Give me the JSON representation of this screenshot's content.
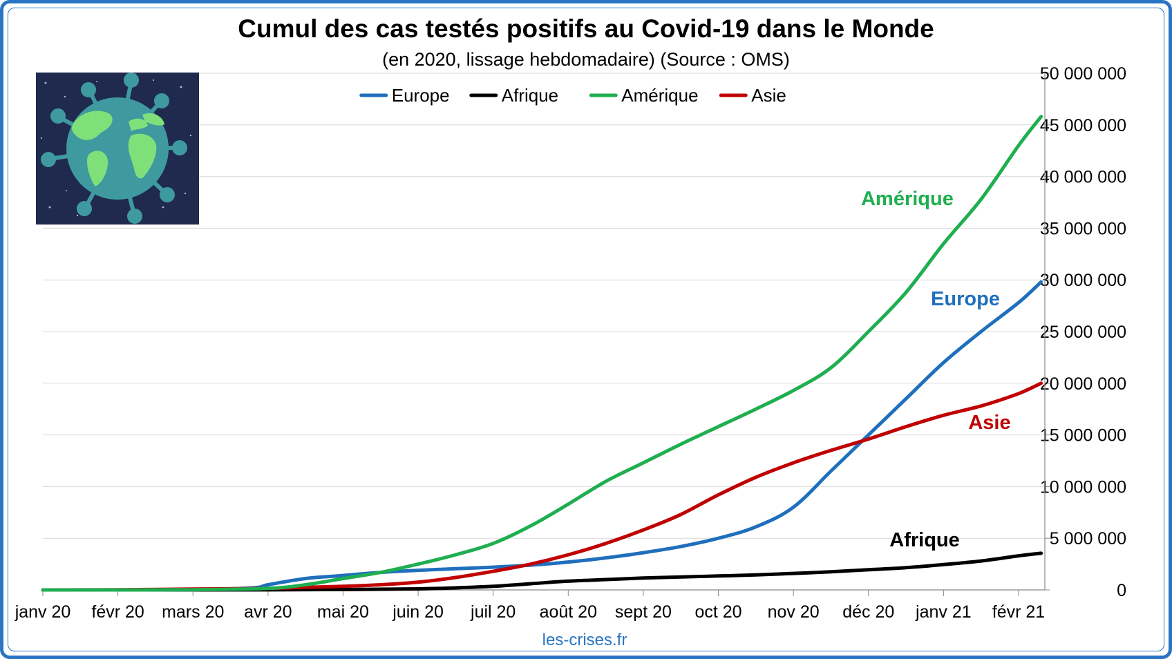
{
  "chart_data": {
    "type": "line",
    "title": "Cumul des cas testés positifs au Covid-19 dans le Monde",
    "subtitle": "(en 2020, lissage hebdomadaire) (Source : OMS)",
    "source_note": "les-crises.fr",
    "x_ticks": [
      "janv 20",
      "févr 20",
      "mars 20",
      "avr 20",
      "mai 20",
      "juin 20",
      "juil 20",
      "août 20",
      "sept 20",
      "oct 20",
      "nov 20",
      "déc 20",
      "janv 21",
      "févr 21"
    ],
    "y_ticks": [
      "0",
      "5 000 000",
      "10 000 000",
      "15 000 000",
      "20 000 000",
      "25 000 000",
      "30 000 000",
      "35 000 000",
      "40 000 000",
      "45 000 000",
      "50 000 000"
    ],
    "ylim": [
      0,
      50000000
    ],
    "y_axis_side": "right",
    "grid": true,
    "legend_position": "top-center",
    "x_unit": "months since janv 20",
    "series": [
      {
        "name": "Europe",
        "color": "#1f6fbd",
        "points": [
          [
            0,
            0
          ],
          [
            1,
            0
          ],
          [
            2,
            30000
          ],
          [
            2.8,
            200000
          ],
          [
            3,
            500000
          ],
          [
            3.5,
            1100000
          ],
          [
            4,
            1400000
          ],
          [
            4.5,
            1700000
          ],
          [
            5,
            1900000
          ],
          [
            5.5,
            2050000
          ],
          [
            6,
            2200000
          ],
          [
            6.5,
            2400000
          ],
          [
            7,
            2700000
          ],
          [
            7.5,
            3100000
          ],
          [
            8,
            3600000
          ],
          [
            8.5,
            4200000
          ],
          [
            9,
            5000000
          ],
          [
            9.5,
            6100000
          ],
          [
            10,
            8000000
          ],
          [
            10.5,
            11500000
          ],
          [
            11,
            15000000
          ],
          [
            11.5,
            18500000
          ],
          [
            12,
            22000000
          ],
          [
            12.5,
            25000000
          ],
          [
            13,
            27800000
          ],
          [
            13.3,
            29800000
          ]
        ]
      },
      {
        "name": "Afrique",
        "color": "#000000",
        "points": [
          [
            0,
            0
          ],
          [
            1,
            0
          ],
          [
            2,
            0
          ],
          [
            3,
            10000
          ],
          [
            4,
            40000
          ],
          [
            5,
            100000
          ],
          [
            5.5,
            200000
          ],
          [
            6,
            350000
          ],
          [
            6.5,
            600000
          ],
          [
            7,
            850000
          ],
          [
            7.5,
            1000000
          ],
          [
            8,
            1150000
          ],
          [
            8.5,
            1250000
          ],
          [
            9,
            1350000
          ],
          [
            9.5,
            1450000
          ],
          [
            10,
            1600000
          ],
          [
            10.5,
            1750000
          ],
          [
            11,
            1950000
          ],
          [
            11.5,
            2150000
          ],
          [
            12,
            2450000
          ],
          [
            12.5,
            2800000
          ],
          [
            13,
            3300000
          ],
          [
            13.3,
            3550000
          ]
        ]
      },
      {
        "name": "Amérique",
        "color": "#1fae50",
        "points": [
          [
            0,
            0
          ],
          [
            1,
            0
          ],
          [
            2,
            20000
          ],
          [
            3,
            150000
          ],
          [
            3.5,
            500000
          ],
          [
            4,
            1100000
          ],
          [
            4.5,
            1700000
          ],
          [
            5,
            2500000
          ],
          [
            5.5,
            3400000
          ],
          [
            6,
            4500000
          ],
          [
            6.5,
            6200000
          ],
          [
            7,
            8300000
          ],
          [
            7.5,
            10500000
          ],
          [
            8,
            12300000
          ],
          [
            8.5,
            14100000
          ],
          [
            9,
            15800000
          ],
          [
            9.5,
            17500000
          ],
          [
            10,
            19300000
          ],
          [
            10.5,
            21500000
          ],
          [
            11,
            25000000
          ],
          [
            11.5,
            28800000
          ],
          [
            12,
            33500000
          ],
          [
            12.5,
            37800000
          ],
          [
            13,
            43000000
          ],
          [
            13.3,
            45800000
          ]
        ]
      },
      {
        "name": "Asie",
        "color": "#c00000",
        "points": [
          [
            0,
            0
          ],
          [
            1,
            20000
          ],
          [
            2,
            80000
          ],
          [
            3,
            150000
          ],
          [
            3.5,
            250000
          ],
          [
            4,
            350000
          ],
          [
            4.5,
            500000
          ],
          [
            5,
            750000
          ],
          [
            5.5,
            1200000
          ],
          [
            6,
            1800000
          ],
          [
            6.5,
            2500000
          ],
          [
            7,
            3400000
          ],
          [
            7.5,
            4500000
          ],
          [
            8,
            5800000
          ],
          [
            8.5,
            7300000
          ],
          [
            9,
            9200000
          ],
          [
            9.5,
            10900000
          ],
          [
            10,
            12300000
          ],
          [
            10.5,
            13500000
          ],
          [
            11,
            14600000
          ],
          [
            11.5,
            15800000
          ],
          [
            12,
            16900000
          ],
          [
            12.5,
            17800000
          ],
          [
            13,
            19000000
          ],
          [
            13.3,
            20000000
          ]
        ]
      }
    ],
    "inline_labels": {
      "amerique": "Amérique",
      "europe": "Europe",
      "asie": "Asie",
      "afrique": "Afrique"
    }
  },
  "logo": {
    "name": "globe-virus-illustration",
    "background_color": "#1f2a4e"
  }
}
